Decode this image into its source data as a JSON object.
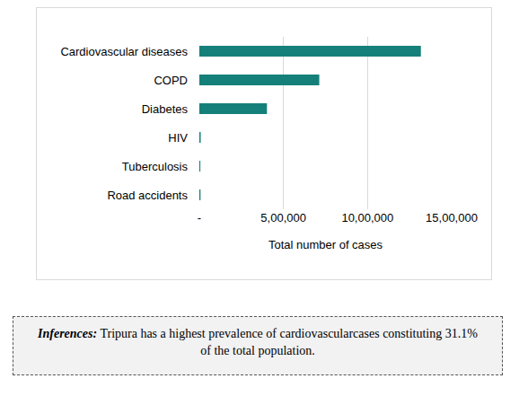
{
  "chart_data": {
    "type": "bar",
    "orientation": "horizontal",
    "categories": [
      "Cardiovascular diseases",
      "COPD",
      "Diabetes",
      "HIV",
      "Tuberculosis",
      "Road accidents"
    ],
    "values": [
      1317000,
      713000,
      402000,
      8000,
      6000,
      7000
    ],
    "color": "#15807a",
    "x_label": "Total number of cases",
    "xlim": [
      0,
      1500000
    ],
    "xticks": [
      {
        "value": 0,
        "label": "-"
      },
      {
        "value": 500000,
        "label": "5,00,000"
      },
      {
        "value": 1000000,
        "label": "10,00,000"
      },
      {
        "value": 1500000,
        "label": "15,00,000"
      }
    ],
    "grid": true
  },
  "inference": {
    "label": "Inferences:",
    "text": "Tripura has a highest prevalence of cardiovascularcases constituting 31.1% of the total population."
  }
}
